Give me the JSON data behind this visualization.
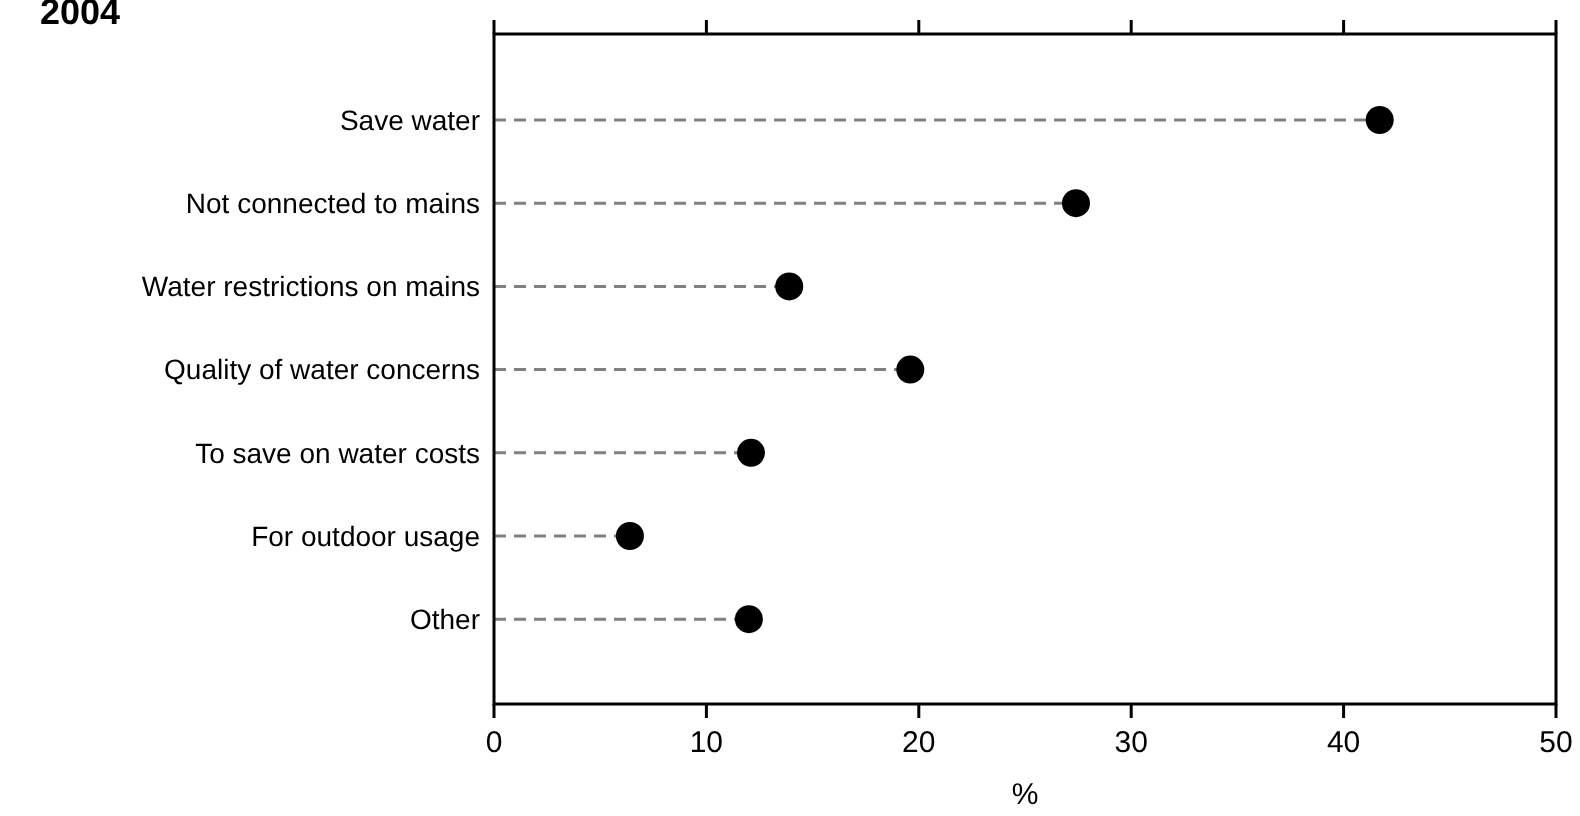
{
  "chart_data": {
    "type": "lollipop",
    "title": "2004",
    "orientation": "horizontal",
    "categories": [
      "Save water",
      "Not connected to mains",
      "Water restrictions on mains",
      "Quality of water concerns",
      "To save on water costs",
      "For outdoor usage",
      "Other"
    ],
    "values": [
      41.7,
      27.4,
      13.9,
      19.6,
      12.1,
      6.4,
      12.0
    ],
    "color": "#000000",
    "xlabel": "%",
    "xlim": [
      0,
      50
    ],
    "xticks": [
      0,
      10,
      20,
      30,
      40,
      50
    ],
    "marker": "circle",
    "line_style": "dashed",
    "grid": false
  }
}
